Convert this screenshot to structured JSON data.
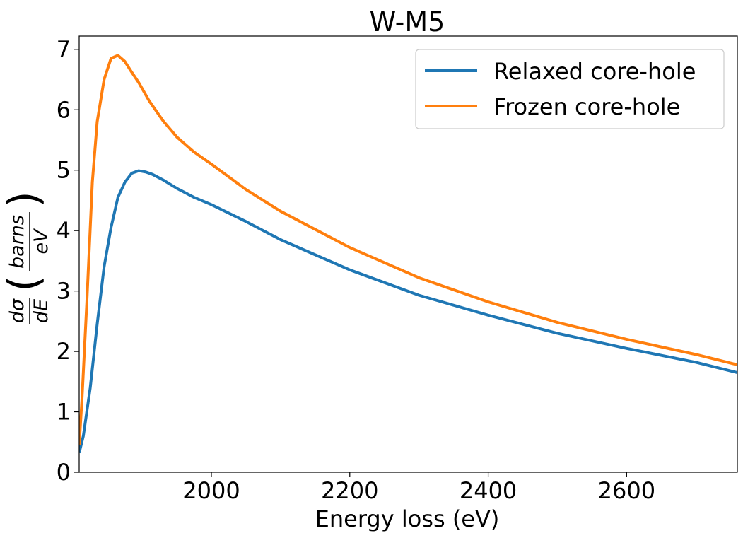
{
  "chart_data": {
    "type": "line",
    "title": "W-M5",
    "xlabel": "Energy loss (eV)",
    "ylabel": {
      "num_left": "dσ",
      "den_left": "dE",
      "num_right": "barns",
      "den_right": "eV"
    },
    "xlim": [
      1809,
      2760
    ],
    "ylim": [
      0,
      7.22
    ],
    "xticks": [
      2000,
      2200,
      2400,
      2600
    ],
    "yticks": [
      0,
      1,
      2,
      3,
      4,
      5,
      6,
      7
    ],
    "legend_position": "upper-right",
    "series": [
      {
        "name": "Relaxed core-hole",
        "color": "#1f77b4",
        "x": [
          1809,
          1815,
          1825,
          1835,
          1845,
          1855,
          1865,
          1875,
          1885,
          1895,
          1905,
          1915,
          1930,
          1950,
          1975,
          2000,
          2050,
          2100,
          2200,
          2300,
          2400,
          2500,
          2600,
          2700,
          2760
        ],
        "y": [
          0.32,
          0.6,
          1.4,
          2.45,
          3.4,
          4.05,
          4.55,
          4.8,
          4.95,
          4.99,
          4.97,
          4.93,
          4.84,
          4.7,
          4.55,
          4.43,
          4.15,
          3.85,
          3.35,
          2.93,
          2.6,
          2.3,
          2.05,
          1.82,
          1.65
        ]
      },
      {
        "name": "Frozen core-hole",
        "color": "#ff7f0e",
        "x": [
          1809,
          1813,
          1820,
          1828,
          1835,
          1845,
          1855,
          1865,
          1875,
          1885,
          1895,
          1910,
          1930,
          1950,
          1975,
          2000,
          2050,
          2100,
          2200,
          2300,
          2400,
          2500,
          2600,
          2700,
          2760
        ],
        "y": [
          0.45,
          1.2,
          2.8,
          4.8,
          5.8,
          6.5,
          6.85,
          6.9,
          6.8,
          6.62,
          6.45,
          6.15,
          5.82,
          5.55,
          5.3,
          5.1,
          4.68,
          4.32,
          3.72,
          3.22,
          2.82,
          2.48,
          2.2,
          1.95,
          1.78
        ]
      }
    ]
  }
}
